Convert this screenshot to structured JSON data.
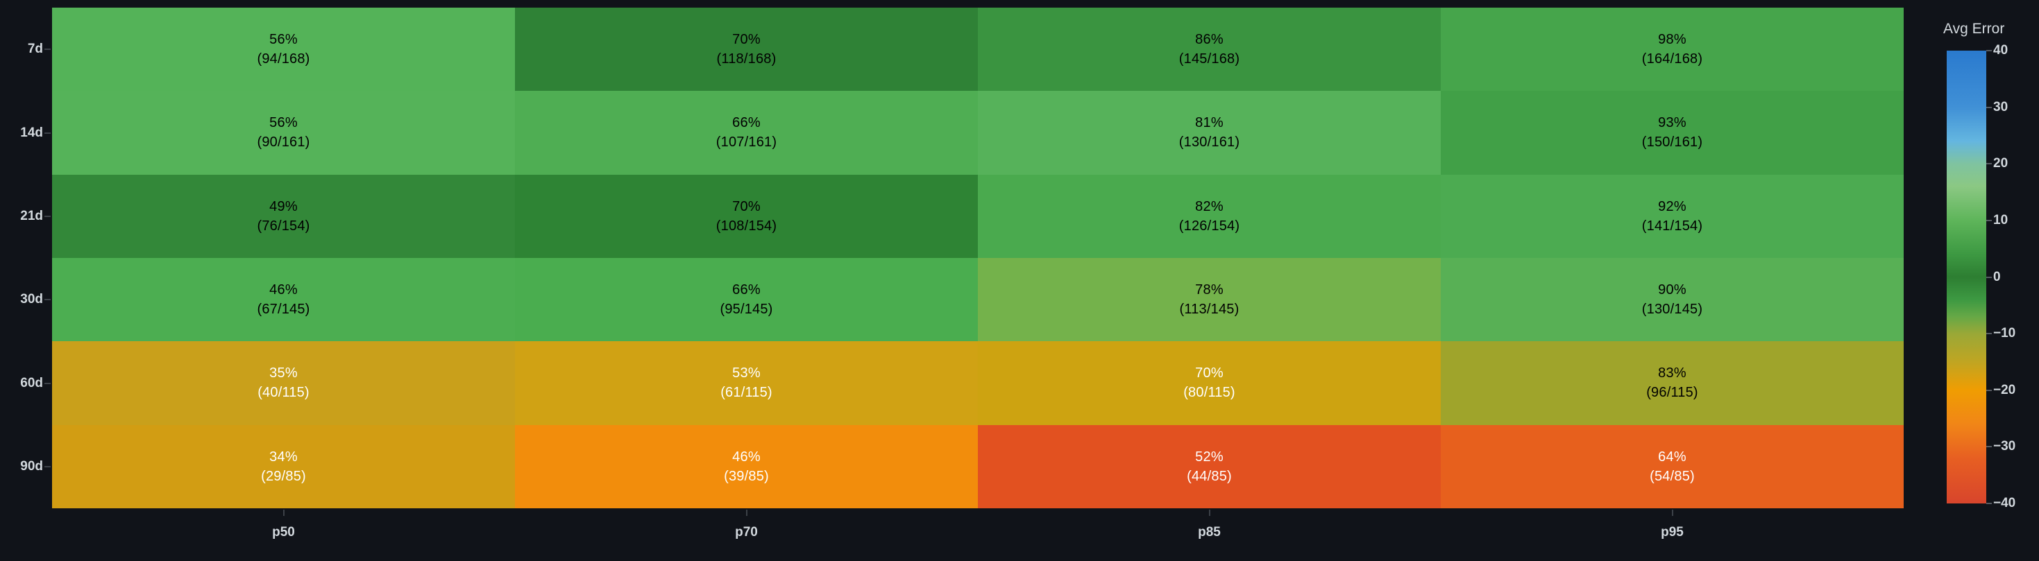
{
  "colors": {
    "background": "#101319",
    "axis_label": "#d3d9de",
    "tick_mark": "#3c4148"
  },
  "chart_data": {
    "type": "heatmap",
    "title": "",
    "xlabel": "",
    "ylabel": "",
    "x_categories": [
      "p50",
      "p70",
      "p85",
      "p95"
    ],
    "y_categories": [
      "7d",
      "14d",
      "21d",
      "30d",
      "60d",
      "90d"
    ],
    "legend_position": "right",
    "grid": false,
    "cells": [
      {
        "row": "7d",
        "col": "p50",
        "pct": "56%",
        "fraction": "(94/168)",
        "hit": 94,
        "total": 168,
        "color": "#54b358",
        "text_color": "#000000"
      },
      {
        "row": "7d",
        "col": "p70",
        "pct": "70%",
        "fraction": "(118/168)",
        "hit": 118,
        "total": 168,
        "color": "#2f8236",
        "text_color": "#000000"
      },
      {
        "row": "7d",
        "col": "p85",
        "pct": "86%",
        "fraction": "(145/168)",
        "hit": 145,
        "total": 168,
        "color": "#3a9440",
        "text_color": "#000000"
      },
      {
        "row": "7d",
        "col": "p95",
        "pct": "98%",
        "fraction": "(164/168)",
        "hit": 164,
        "total": 168,
        "color": "#46a54b",
        "text_color": "#000000"
      },
      {
        "row": "14d",
        "col": "p50",
        "pct": "56%",
        "fraction": "(90/161)",
        "hit": 90,
        "total": 161,
        "color": "#55b359",
        "text_color": "#000000"
      },
      {
        "row": "14d",
        "col": "p70",
        "pct": "66%",
        "fraction": "(107/161)",
        "hit": 107,
        "total": 161,
        "color": "#4fae53",
        "text_color": "#000000"
      },
      {
        "row": "14d",
        "col": "p85",
        "pct": "81%",
        "fraction": "(130/161)",
        "hit": 130,
        "total": 161,
        "color": "#56b25a",
        "text_color": "#000000"
      },
      {
        "row": "14d",
        "col": "p95",
        "pct": "93%",
        "fraction": "(150/161)",
        "hit": 150,
        "total": 161,
        "color": "#41a047",
        "text_color": "#000000"
      },
      {
        "row": "21d",
        "col": "p50",
        "pct": "49%",
        "fraction": "(76/154)",
        "hit": 76,
        "total": 154,
        "color": "#338839",
        "text_color": "#000000"
      },
      {
        "row": "21d",
        "col": "p70",
        "pct": "70%",
        "fraction": "(108/154)",
        "hit": 108,
        "total": 154,
        "color": "#2e8434",
        "text_color": "#000000"
      },
      {
        "row": "21d",
        "col": "p85",
        "pct": "82%",
        "fraction": "(126/154)",
        "hit": 126,
        "total": 154,
        "color": "#4aaa4e",
        "text_color": "#000000"
      },
      {
        "row": "21d",
        "col": "p95",
        "pct": "92%",
        "fraction": "(141/154)",
        "hit": 141,
        "total": 154,
        "color": "#4cab51",
        "text_color": "#000000"
      },
      {
        "row": "30d",
        "col": "p50",
        "pct": "46%",
        "fraction": "(67/145)",
        "hit": 67,
        "total": 145,
        "color": "#4cae51",
        "text_color": "#000000"
      },
      {
        "row": "30d",
        "col": "p70",
        "pct": "66%",
        "fraction": "(95/145)",
        "hit": 95,
        "total": 145,
        "color": "#4aad4f",
        "text_color": "#000000"
      },
      {
        "row": "30d",
        "col": "p85",
        "pct": "78%",
        "fraction": "(113/145)",
        "hit": 113,
        "total": 145,
        "color": "#74b24b",
        "text_color": "#000000"
      },
      {
        "row": "30d",
        "col": "p95",
        "pct": "90%",
        "fraction": "(130/145)",
        "hit": 130,
        "total": 145,
        "color": "#58b055",
        "text_color": "#000000"
      },
      {
        "row": "60d",
        "col": "p50",
        "pct": "35%",
        "fraction": "(40/115)",
        "hit": 40,
        "total": 115,
        "color": "#c9a01b",
        "text_color": "#ffffff"
      },
      {
        "row": "60d",
        "col": "p70",
        "pct": "53%",
        "fraction": "(61/115)",
        "hit": 61,
        "total": 115,
        "color": "#d0a214",
        "text_color": "#ffffff"
      },
      {
        "row": "60d",
        "col": "p85",
        "pct": "70%",
        "fraction": "(80/115)",
        "hit": 80,
        "total": 115,
        "color": "#cda311",
        "text_color": "#ffffff"
      },
      {
        "row": "60d",
        "col": "p95",
        "pct": "83%",
        "fraction": "(96/115)",
        "hit": 96,
        "total": 115,
        "color": "#9fa42b",
        "text_color": "#000000"
      },
      {
        "row": "90d",
        "col": "p50",
        "pct": "34%",
        "fraction": "(29/85)",
        "hit": 29,
        "total": 85,
        "color": "#d29d13",
        "text_color": "#ffffff"
      },
      {
        "row": "90d",
        "col": "p70",
        "pct": "46%",
        "fraction": "(39/85)",
        "hit": 39,
        "total": 85,
        "color": "#f28d0c",
        "text_color": "#ffffff"
      },
      {
        "row": "90d",
        "col": "p85",
        "pct": "52%",
        "fraction": "(44/85)",
        "hit": 44,
        "total": 85,
        "color": "#e25120",
        "text_color": "#ffffff"
      },
      {
        "row": "90d",
        "col": "p95",
        "pct": "64%",
        "fraction": "(54/85)",
        "hit": 54,
        "total": 85,
        "color": "#e7601d",
        "text_color": "#ffffff"
      }
    ],
    "colorbar": {
      "title": "Avg Error",
      "min": -40,
      "max": 40,
      "ticks": [
        {
          "label": "40",
          "value": 40
        },
        {
          "label": "30",
          "value": 30
        },
        {
          "label": "20",
          "value": 20
        },
        {
          "label": "10",
          "value": 10
        },
        {
          "label": "0",
          "value": 0
        },
        {
          "label": "−10",
          "value": -10
        },
        {
          "label": "−20",
          "value": -20
        },
        {
          "label": "−30",
          "value": -30
        },
        {
          "label": "−40",
          "value": -40
        }
      ],
      "gradient_stops": [
        {
          "value": 40,
          "color": "#2a7ace"
        },
        {
          "value": 30,
          "color": "#4090d6"
        },
        {
          "value": 24,
          "color": "#64b6e0"
        },
        {
          "value": 20,
          "color": "#7fc3a0"
        },
        {
          "value": 16,
          "color": "#8bc883"
        },
        {
          "value": 10,
          "color": "#5eb55a"
        },
        {
          "value": 4,
          "color": "#3d9942"
        },
        {
          "value": 0,
          "color": "#2d7e32"
        },
        {
          "value": -4,
          "color": "#3d9942"
        },
        {
          "value": -7,
          "color": "#66a846"
        },
        {
          "value": -10,
          "color": "#9aa837"
        },
        {
          "value": -15,
          "color": "#c0a522"
        },
        {
          "value": -20,
          "color": "#f09d02"
        },
        {
          "value": -26,
          "color": "#f18617"
        },
        {
          "value": -32,
          "color": "#e75f22"
        },
        {
          "value": -40,
          "color": "#d8452c"
        }
      ]
    }
  }
}
